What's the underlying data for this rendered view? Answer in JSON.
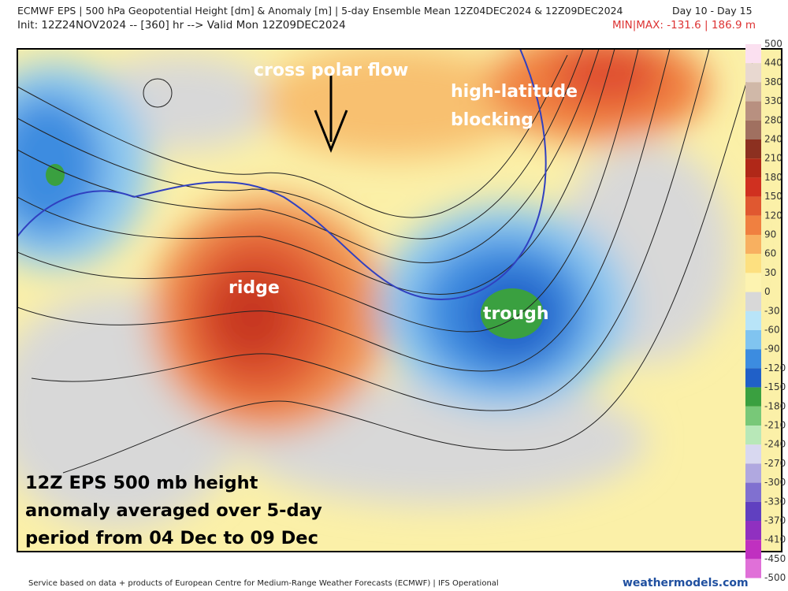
{
  "header": {
    "title": "ECMWF EPS | 500 hPa Geopotential Height [dm] & Anomaly [m] | 5-day Ensemble Mean 12Z04DEC2024 & 12Z09DEC2024",
    "days": "Day 10 - Day 15",
    "init": "Init: 12Z24NOV2024 -- [360] hr --> Valid Mon 12Z09DEC2024",
    "minmax": "MIN|MAX: -131.6 | 186.9 m"
  },
  "annotations": {
    "cross_polar": "cross polar flow",
    "blocking": [
      "high-latitude",
      "blocking"
    ],
    "ridge": "ridge",
    "trough": "trough",
    "caption": [
      "12Z EPS 500 mb height",
      "anomaly averaged over 5-day",
      "period from 04 Dec to 09 Dec"
    ]
  },
  "colorbar": {
    "labels": [
      500,
      440,
      380,
      330,
      280,
      240,
      210,
      180,
      150,
      120,
      90,
      60,
      30,
      0,
      -30,
      -60,
      -90,
      -120,
      -150,
      -180,
      -210,
      -240,
      -270,
      -300,
      -330,
      -370,
      -410,
      -450,
      -500
    ]
  },
  "footer": {
    "source": "Service based on data + products of European Centre for Medium-Range Weather Forecasts (ECMWF) | IFS Operational",
    "site": "weathermodels.com"
  }
}
